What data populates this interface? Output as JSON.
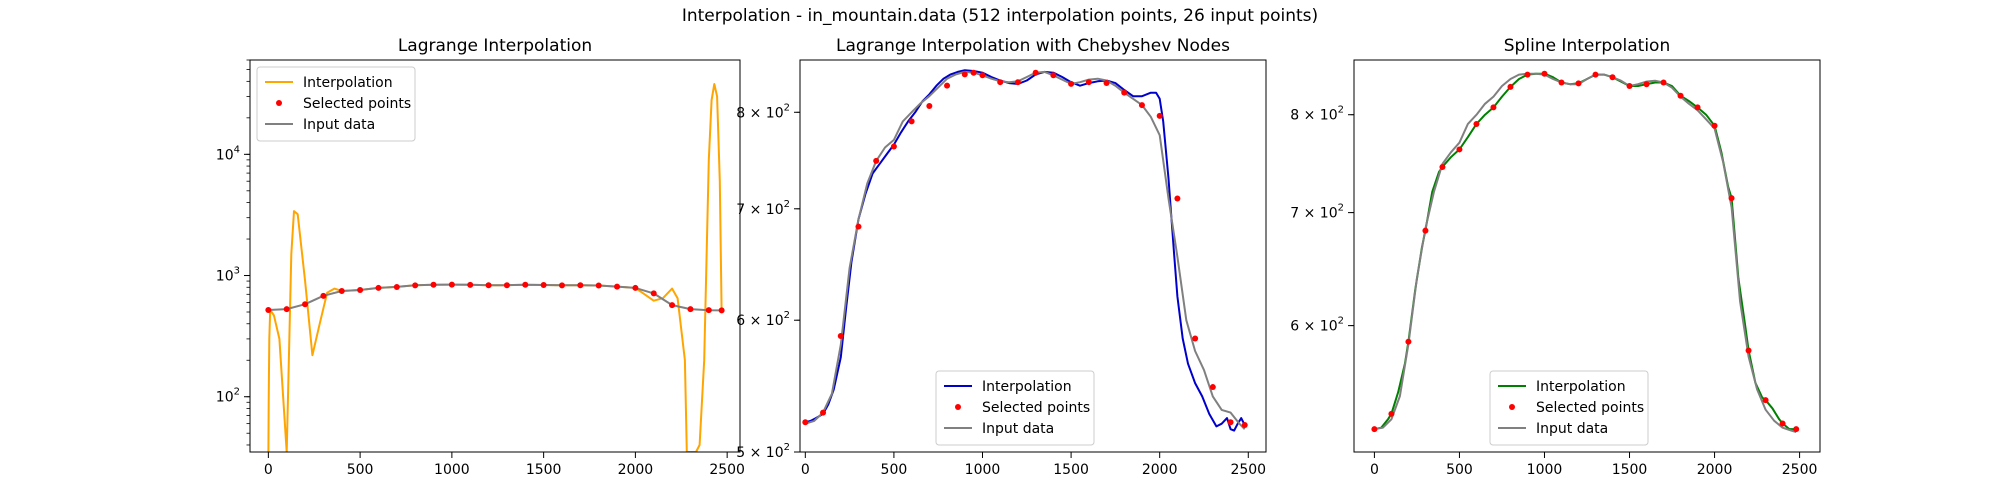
{
  "figure": {
    "suptitle": "Interpolation - in_mountain.data (512 interpolation points, 26 input points)"
  },
  "colors": {
    "lagrange": "#FFA500",
    "chebyshev": "#0000CD",
    "spline": "#008000",
    "selected": "#FF0000",
    "input": "#808080"
  },
  "chart_data": [
    {
      "type": "line",
      "title": "Lagrange Interpolation",
      "yscale": "log",
      "xlim": [
        -100,
        2570
      ],
      "ylim": [
        35,
        60000
      ],
      "xticks": [
        0,
        500,
        1000,
        1500,
        2000,
        2500
      ],
      "yticks": [
        {
          "value": 100,
          "base": "10",
          "exp": "2"
        },
        {
          "value": 1000,
          "base": "10",
          "exp": "3"
        },
        {
          "value": 10000,
          "base": "10",
          "exp": "4"
        }
      ],
      "legend": {
        "position": "top-left",
        "entries": [
          "Interpolation",
          "Selected points",
          "Input data"
        ]
      },
      "input_data": {
        "x": [
          0,
          100,
          200,
          300,
          400,
          500,
          600,
          700,
          800,
          900,
          1000,
          1100,
          1200,
          1300,
          1400,
          1500,
          1600,
          1700,
          1800,
          1900,
          2000,
          2100,
          2200,
          2300,
          2400,
          2470
        ],
        "y": [
          520,
          528,
          580,
          680,
          745,
          760,
          790,
          805,
          830,
          840,
          842,
          838,
          832,
          832,
          840,
          835,
          830,
          832,
          828,
          810,
          790,
          712,
          570,
          528,
          518,
          516
        ]
      },
      "selected_points": {
        "x": [
          0,
          100,
          200,
          300,
          400,
          500,
          600,
          700,
          800,
          900,
          1000,
          1100,
          1200,
          1300,
          1400,
          1500,
          1600,
          1700,
          1800,
          1900,
          2000,
          2100,
          2200,
          2300,
          2400,
          2470
        ],
        "y": [
          520,
          528,
          580,
          680,
          745,
          760,
          790,
          805,
          830,
          840,
          842,
          838,
          832,
          832,
          840,
          835,
          830,
          832,
          828,
          810,
          790,
          712,
          570,
          528,
          518,
          516
        ]
      },
      "interpolation": {
        "x": [
          0,
          2,
          5,
          10,
          30,
          60,
          100,
          110,
          125,
          140,
          160,
          200,
          240,
          280,
          320,
          360,
          400,
          500,
          600,
          700,
          800,
          900,
          1000,
          1100,
          1200,
          1300,
          1400,
          1500,
          1600,
          1700,
          1800,
          1900,
          2000,
          2050,
          2100,
          2150,
          2200,
          2230,
          2270,
          2280,
          2300,
          2330,
          2350,
          2375,
          2400,
          2415,
          2430,
          2445,
          2460,
          2470
        ],
        "y": [
          35,
          90,
          300,
          520,
          470,
          300,
          35,
          150,
          1500,
          3400,
          3200,
          900,
          220,
          400,
          720,
          780,
          745,
          760,
          790,
          805,
          830,
          840,
          842,
          838,
          832,
          832,
          840,
          835,
          830,
          832,
          828,
          810,
          790,
          700,
          620,
          650,
          780,
          650,
          200,
          35,
          35,
          35,
          40,
          200,
          9000,
          28000,
          38000,
          30000,
          6000,
          516
        ]
      }
    },
    {
      "type": "line",
      "title": "Lagrange Interpolation with Chebyshev Nodes",
      "yscale": "log",
      "xlim": [
        -30,
        2600
      ],
      "ylim": [
        500,
        860
      ],
      "xticks": [
        0,
        500,
        1000,
        1500,
        2000,
        2500
      ],
      "yticks": [
        {
          "value": 500,
          "base": "5 × 10",
          "exp": "2"
        },
        {
          "value": 600,
          "base": "6 × 10",
          "exp": "2"
        },
        {
          "value": 700,
          "base": "7 × 10",
          "exp": "2"
        },
        {
          "value": 800,
          "base": "8 × 10",
          "exp": "2"
        }
      ],
      "legend": {
        "position": "bottom-center",
        "entries": [
          "Interpolation",
          "Selected points",
          "Input data"
        ]
      },
      "input_data": {
        "x": [
          0,
          50,
          100,
          150,
          200,
          250,
          300,
          350,
          400,
          450,
          500,
          550,
          600,
          650,
          700,
          750,
          800,
          850,
          900,
          950,
          1000,
          1050,
          1100,
          1150,
          1200,
          1250,
          1300,
          1350,
          1400,
          1450,
          1500,
          1550,
          1600,
          1650,
          1700,
          1750,
          1800,
          1850,
          1900,
          1950,
          2000,
          2050,
          2100,
          2150,
          2200,
          2250,
          2300,
          2350,
          2400,
          2450,
          2480
        ],
        "y": [
          520,
          522,
          528,
          542,
          580,
          645,
          690,
          725,
          748,
          762,
          770,
          790,
          800,
          810,
          818,
          828,
          838,
          843,
          846,
          845,
          842,
          838,
          835,
          834,
          835,
          840,
          845,
          846,
          842,
          837,
          832,
          834,
          837,
          838,
          836,
          830,
          822,
          815,
          808,
          795,
          775,
          710,
          655,
          600,
          575,
          560,
          540,
          530,
          528,
          520,
          516
        ]
      },
      "selected_points": {
        "x": [
          0,
          100,
          200,
          300,
          400,
          500,
          600,
          700,
          800,
          900,
          950,
          1000,
          1100,
          1200,
          1300,
          1400,
          1500,
          1600,
          1700,
          1800,
          1900,
          2000,
          2100,
          2200,
          2300,
          2400,
          2480
        ],
        "y": [
          521,
          528,
          587,
          683,
          748,
          763,
          790,
          807,
          830,
          843,
          845,
          842,
          834,
          834,
          845,
          842,
          832,
          834,
          833,
          822,
          808,
          796,
          710,
          585,
          547,
          521,
          519
        ]
      },
      "interpolation": {
        "x": [
          0,
          30,
          60,
          100,
          130,
          160,
          200,
          230,
          260,
          300,
          340,
          380,
          420,
          460,
          500,
          540,
          580,
          620,
          660,
          700,
          740,
          780,
          820,
          860,
          900,
          950,
          1000,
          1050,
          1100,
          1150,
          1200,
          1250,
          1300,
          1350,
          1400,
          1450,
          1500,
          1550,
          1600,
          1650,
          1700,
          1750,
          1800,
          1850,
          1900,
          1950,
          1980,
          2000,
          2020,
          2050,
          2080,
          2100,
          2130,
          2160,
          2200,
          2240,
          2280,
          2320,
          2350,
          2380,
          2400,
          2420,
          2440,
          2460,
          2480
        ],
        "y": [
          521,
          522,
          524,
          527,
          534,
          545,
          570,
          610,
          650,
          690,
          715,
          735,
          745,
          755,
          765,
          778,
          790,
          800,
          812,
          820,
          830,
          838,
          843,
          846,
          848,
          847,
          845,
          840,
          836,
          833,
          832,
          836,
          843,
          846,
          845,
          840,
          834,
          830,
          833,
          835,
          836,
          833,
          825,
          818,
          818,
          822,
          822,
          815,
          790,
          730,
          660,
          620,
          585,
          565,
          550,
          540,
          527,
          518,
          520,
          524,
          516,
          515,
          520,
          524,
          519
        ]
      }
    },
    {
      "type": "line",
      "title": "Spline Interpolation",
      "yscale": "log",
      "xlim": [
        -120,
        2620
      ],
      "ylim": [
        505,
        862
      ],
      "xticks": [
        0,
        500,
        1000,
        1500,
        2000,
        2500
      ],
      "yticks": [
        {
          "value": 600,
          "base": "6 × 10",
          "exp": "2"
        },
        {
          "value": 700,
          "base": "7 × 10",
          "exp": "2"
        },
        {
          "value": 800,
          "base": "8 × 10",
          "exp": "2"
        }
      ],
      "legend": {
        "position": "bottom-center",
        "entries": [
          "Interpolation",
          "Selected points",
          "Input data"
        ]
      },
      "input_data": {
        "x": [
          0,
          50,
          100,
          150,
          200,
          250,
          300,
          350,
          400,
          450,
          500,
          550,
          600,
          650,
          700,
          750,
          800,
          850,
          900,
          950,
          1000,
          1050,
          1100,
          1150,
          1200,
          1250,
          1300,
          1350,
          1400,
          1450,
          1500,
          1550,
          1600,
          1650,
          1700,
          1750,
          1800,
          1850,
          1900,
          1950,
          2000,
          2050,
          2100,
          2150,
          2200,
          2250,
          2300,
          2350,
          2400,
          2450,
          2480
        ],
        "y": [
          521,
          522,
          528,
          545,
          585,
          640,
          685,
          720,
          748,
          760,
          770,
          790,
          800,
          812,
          820,
          832,
          840,
          845,
          846,
          846,
          845,
          840,
          836,
          834,
          834,
          840,
          845,
          845,
          842,
          838,
          832,
          834,
          837,
          838,
          836,
          830,
          820,
          812,
          805,
          795,
          785,
          750,
          705,
          620,
          575,
          550,
          535,
          527,
          522,
          520,
          519
        ]
      },
      "selected_points": {
        "x": [
          0,
          100,
          200,
          300,
          400,
          500,
          600,
          700,
          800,
          900,
          1000,
          1100,
          1200,
          1300,
          1400,
          1500,
          1600,
          1700,
          1800,
          1900,
          2000,
          2100,
          2200,
          2300,
          2400,
          2480
        ],
        "y": [
          521,
          532,
          587,
          683,
          745,
          763,
          790,
          808,
          831,
          845,
          846,
          836,
          835,
          845,
          842,
          832,
          834,
          836,
          821,
          808,
          788,
          714,
          580,
          542,
          525,
          521
        ]
      },
      "interpolation": {
        "x": [
          0,
          40,
          80,
          100,
          140,
          180,
          200,
          240,
          280,
          300,
          340,
          380,
          400,
          450,
          500,
          550,
          600,
          650,
          700,
          750,
          800,
          850,
          900,
          950,
          1000,
          1050,
          1100,
          1150,
          1200,
          1250,
          1300,
          1350,
          1400,
          1450,
          1500,
          1550,
          1600,
          1650,
          1700,
          1750,
          1800,
          1850,
          1900,
          1950,
          2000,
          2040,
          2080,
          2100,
          2140,
          2180,
          2200,
          2240,
          2280,
          2300,
          2340,
          2380,
          2400,
          2440,
          2480
        ],
        "y": [
          521,
          522,
          528,
          532,
          548,
          570,
          587,
          630,
          668,
          683,
          720,
          740,
          745,
          755,
          763,
          776,
          790,
          800,
          808,
          820,
          831,
          840,
          845,
          846,
          846,
          842,
          836,
          834,
          835,
          840,
          845,
          845,
          842,
          837,
          832,
          832,
          834,
          836,
          836,
          832,
          821,
          815,
          808,
          800,
          788,
          760,
          725,
          714,
          640,
          600,
          580,
          555,
          544,
          542,
          536,
          528,
          525,
          521,
          521
        ]
      }
    }
  ]
}
